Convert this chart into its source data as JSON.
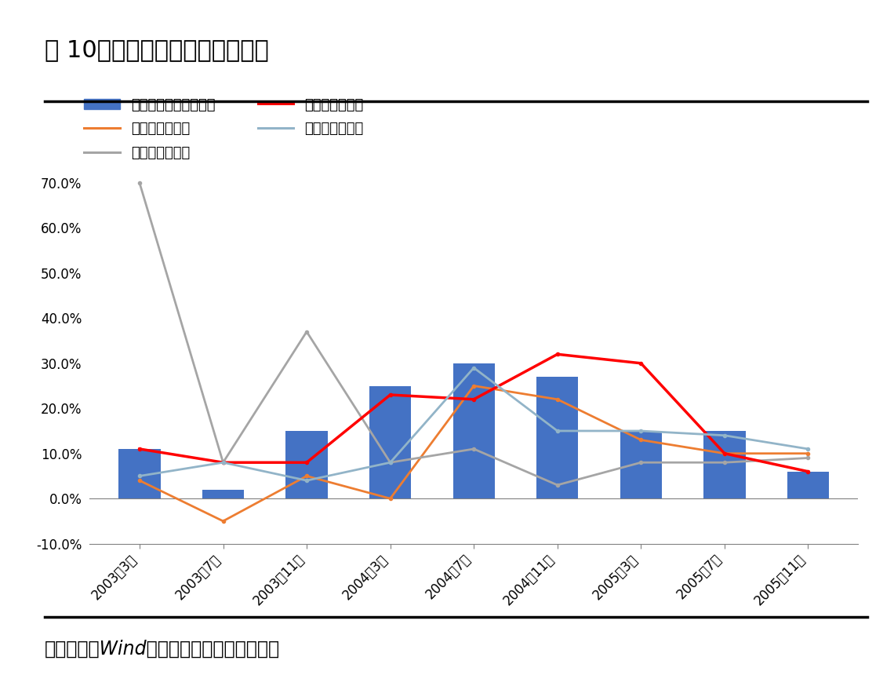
{
  "title": "图 10：疫情对第一产业影响有限",
  "footer": "资料来源：Wind，北京大学经济政策研究所",
  "x_labels": [
    "2003年3月",
    "2003年7月",
    "2003年11月",
    "2004年3月",
    "2004年7月",
    "2004年11月",
    "2005年3月",
    "2005年7月",
    "2005年11月"
  ],
  "bar_values": [
    11.0,
    2.0,
    15.0,
    25.0,
    30.0,
    27.0,
    15.0,
    15.0,
    6.0
  ],
  "agriculture": [
    4.0,
    -5.0,
    5.0,
    0.0,
    25.0,
    22.0,
    13.0,
    10.0,
    10.0
  ],
  "forestry": [
    70.0,
    8.0,
    37.0,
    8.0,
    11.0,
    3.0,
    8.0,
    8.0,
    9.0
  ],
  "livestock": [
    11.0,
    8.0,
    8.0,
    23.0,
    22.0,
    32.0,
    30.0,
    10.0,
    6.0
  ],
  "fishery": [
    5.0,
    8.0,
    4.0,
    8.0,
    29.0,
    15.0,
    15.0,
    14.0,
    11.0
  ],
  "bar_color": "#4472C4",
  "agriculture_color": "#ED7D31",
  "forestry_color": "#A5A5A5",
  "livestock_color": "#FF0000",
  "fishery_color": "#92B4C8",
  "ylim": [
    -10.0,
    75.0
  ],
  "yticks": [
    -10.0,
    0.0,
    10.0,
    20.0,
    30.0,
    40.0,
    50.0,
    60.0,
    70.0
  ],
  "background_color": "#FFFFFF",
  "title_fontsize": 22,
  "legend_fontsize": 13,
  "tick_fontsize": 12,
  "footer_fontsize": 17
}
